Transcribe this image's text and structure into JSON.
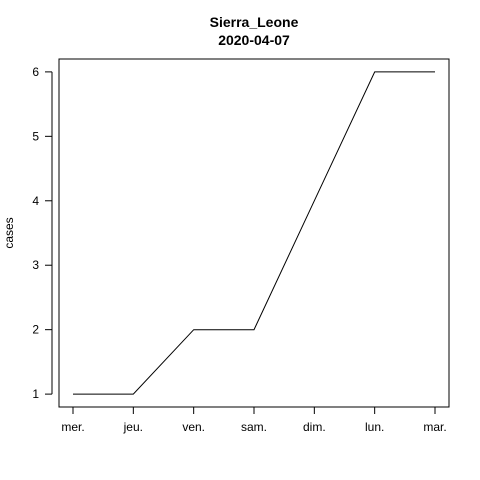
{
  "chart_data": {
    "type": "line",
    "title": "Sierra_Leone",
    "subtitle": "2020-04-07",
    "xlabel": "",
    "ylabel": "cases",
    "categories": [
      "mer.",
      "jeu.",
      "ven.",
      "sam.",
      "dim.",
      "lun.",
      "mar."
    ],
    "series": [
      {
        "values": [
          1,
          1,
          2,
          2,
          4,
          6,
          6
        ]
      }
    ],
    "ylim": [
      0.8,
      6.2
    ],
    "yticks": [
      1,
      2,
      3,
      4,
      5,
      6
    ],
    "grid": false,
    "line_color": "#000000"
  }
}
